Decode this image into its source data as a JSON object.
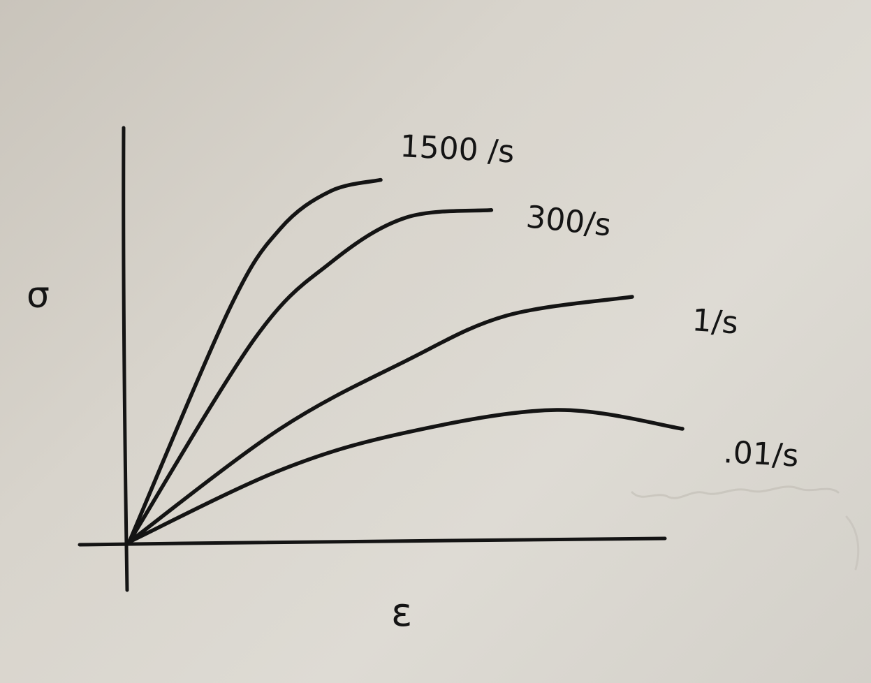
{
  "chart_data": {
    "type": "line",
    "title": "",
    "xlabel": "ε",
    "ylabel": "σ",
    "xlim": [
      0,
      1
    ],
    "ylim": [
      0,
      1
    ],
    "grid": false,
    "legend": "labels at line ends",
    "series": [
      {
        "name": "1500 /s",
        "x": [
          0,
          0.2,
          0.3,
          0.4,
          0.5
        ],
        "y": [
          0,
          0.62,
          0.83,
          0.93,
          0.96
        ]
      },
      {
        "name": "300/s",
        "x": [
          0,
          0.25,
          0.4,
          0.55,
          0.72
        ],
        "y": [
          0,
          0.54,
          0.74,
          0.86,
          0.88
        ]
      },
      {
        "name": "1/s",
        "x": [
          0,
          0.3,
          0.55,
          0.75,
          1.0
        ],
        "y": [
          0,
          0.3,
          0.48,
          0.6,
          0.65
        ]
      },
      {
        "name": ".01/s",
        "x": [
          0,
          0.3,
          0.55,
          0.85,
          1.1
        ],
        "y": [
          0,
          0.19,
          0.29,
          0.35,
          0.3
        ]
      }
    ]
  },
  "colors": {
    "ink": "#141414",
    "paper": "#d8d4cc"
  }
}
